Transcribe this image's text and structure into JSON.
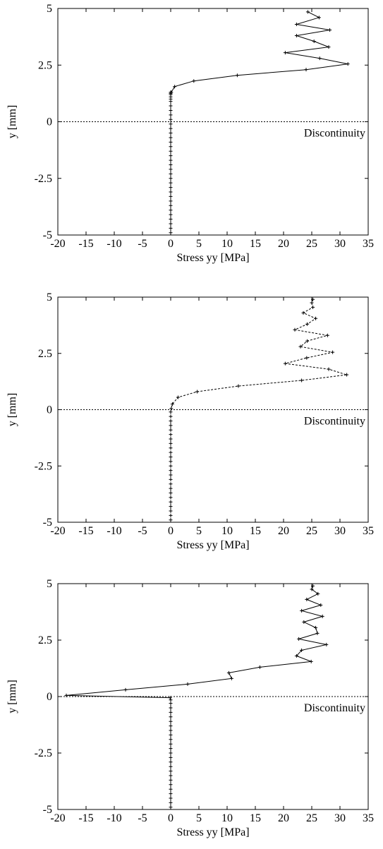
{
  "chart_data": [
    {
      "type": "line",
      "line_style": "solid",
      "xlabel": "Stress yy [MPa]",
      "ylabel": "y [mm]",
      "xlim": [
        -20,
        35
      ],
      "ylim": [
        -5,
        5
      ],
      "xticks": [
        "-20",
        "-15",
        "-10",
        "-5",
        "0",
        "5",
        "10",
        "15",
        "20",
        "25",
        "30",
        "35"
      ],
      "yticks": [
        "-5",
        "-2.5",
        "0",
        "2.5",
        "5"
      ],
      "annotation": {
        "text": "Discontinuity",
        "y": 0
      },
      "series": [
        {
          "x": [
            0,
            0,
            0,
            0,
            0,
            0,
            0,
            0,
            0,
            0,
            0,
            0,
            0,
            0,
            0,
            0,
            0,
            0,
            0,
            0,
            0,
            0,
            0,
            0,
            0,
            0,
            0,
            0,
            0,
            0,
            0,
            0,
            0,
            0,
            0,
            0.1,
            0.7,
            4.1,
            11.8,
            24.0,
            31.4,
            26.4,
            20.3,
            28.0,
            25.4,
            22.3,
            28.2,
            22.3,
            26.3,
            24.3
          ],
          "y": [
            -4.9,
            -4.7,
            -4.5,
            -4.3,
            -4.1,
            -3.9,
            -3.7,
            -3.5,
            -3.3,
            -3.1,
            -2.9,
            -2.7,
            -2.5,
            -2.3,
            -2.1,
            -1.9,
            -1.7,
            -1.5,
            -1.3,
            -1.1,
            -0.9,
            -0.7,
            -0.5,
            -0.3,
            -0.1,
            0.1,
            0.3,
            0.5,
            0.7,
            0.9,
            1.0,
            1.1,
            1.2,
            1.25,
            1.3,
            1.3,
            1.55,
            1.8,
            2.05,
            2.3,
            2.55,
            2.8,
            3.05,
            3.3,
            3.55,
            3.8,
            4.05,
            4.3,
            4.6,
            4.85
          ]
        }
      ]
    },
    {
      "type": "line",
      "line_style": "dashed",
      "xlabel": "Stress yy [MPa]",
      "ylabel": "y [mm]",
      "xlim": [
        -20,
        35
      ],
      "ylim": [
        -5,
        5
      ],
      "xticks": [
        "-20",
        "-15",
        "-10",
        "-5",
        "0",
        "5",
        "10",
        "15",
        "20",
        "25",
        "30",
        "35"
      ],
      "yticks": [
        "-5",
        "-2.5",
        "0",
        "2.5",
        "5"
      ],
      "annotation": {
        "text": "Discontinuity",
        "y": 0
      },
      "series": [
        {
          "x": [
            0,
            0,
            0,
            0,
            0,
            0,
            0,
            0,
            0,
            0,
            0,
            0,
            0,
            0,
            0,
            0,
            0,
            0,
            0,
            0,
            0,
            0,
            0,
            0,
            0,
            0.1,
            0.3,
            1.3,
            4.7,
            12.0,
            23.2,
            31.2,
            28.0,
            20.3,
            24.1,
            28.7,
            23.0,
            24.2,
            27.8,
            22.0,
            24.2,
            25.7,
            23.5,
            25.2,
            25.0,
            25.2
          ],
          "y": [
            -4.9,
            -4.7,
            -4.5,
            -4.3,
            -4.1,
            -3.9,
            -3.7,
            -3.5,
            -3.3,
            -3.1,
            -2.9,
            -2.7,
            -2.5,
            -2.3,
            -2.1,
            -1.9,
            -1.7,
            -1.5,
            -1.3,
            -1.1,
            -0.9,
            -0.7,
            -0.5,
            -0.3,
            -0.1,
            0.05,
            0.25,
            0.55,
            0.8,
            1.05,
            1.3,
            1.55,
            1.8,
            2.05,
            2.3,
            2.55,
            2.8,
            3.05,
            3.3,
            3.55,
            3.8,
            4.05,
            4.3,
            4.55,
            4.75,
            4.9
          ]
        }
      ]
    },
    {
      "type": "line",
      "line_style": "solid",
      "xlabel": "Stress yy [MPa]",
      "ylabel": "y [mm]",
      "xlim": [
        -20,
        35
      ],
      "ylim": [
        -5,
        5
      ],
      "xticks": [
        "-20",
        "-15",
        "-10",
        "-5",
        "0",
        "5",
        "10",
        "15",
        "20",
        "25",
        "30",
        "35"
      ],
      "yticks": [
        "-5",
        "-2.5",
        "0",
        "2.5",
        "5"
      ],
      "annotation": {
        "text": "Discontinuity",
        "y": 0
      },
      "series": [
        {
          "x": [
            0,
            0,
            0,
            0,
            0,
            0,
            0,
            0,
            0,
            0,
            0,
            0,
            0,
            0,
            0,
            0,
            0,
            0,
            0,
            0,
            0,
            0,
            0,
            0,
            0,
            -0.1,
            -18.5,
            -8.0,
            3.0,
            10.8,
            10.3,
            15.8,
            24.9,
            22.3,
            23.2,
            27.6,
            22.7,
            26.0,
            25.7,
            23.6,
            26.9,
            23.2,
            26.6,
            24.1,
            26.1,
            25.0,
            25.2
          ],
          "y": [
            -4.9,
            -4.7,
            -4.5,
            -4.3,
            -4.1,
            -3.9,
            -3.7,
            -3.5,
            -3.3,
            -3.1,
            -2.9,
            -2.7,
            -2.5,
            -2.3,
            -2.1,
            -1.9,
            -1.7,
            -1.5,
            -1.3,
            -1.1,
            -0.9,
            -0.7,
            -0.5,
            -0.3,
            -0.15,
            -0.05,
            0.05,
            0.3,
            0.55,
            0.8,
            1.05,
            1.3,
            1.55,
            1.8,
            2.05,
            2.3,
            2.55,
            2.8,
            3.05,
            3.3,
            3.55,
            3.8,
            4.05,
            4.3,
            4.55,
            4.75,
            4.9
          ]
        }
      ]
    }
  ]
}
